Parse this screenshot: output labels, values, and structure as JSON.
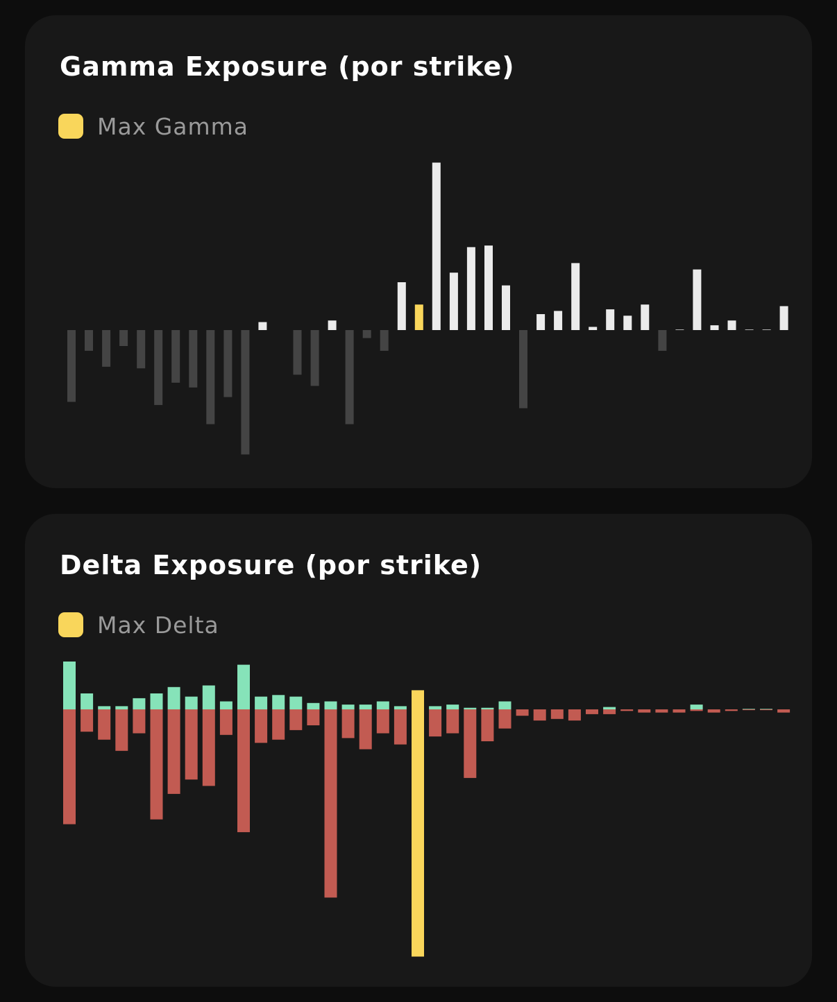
{
  "colors": {
    "background": "#0d0d0d",
    "card": "#181818",
    "highlight": "#f9d65b",
    "gamma_positive": "#ebebeb",
    "gamma_negative": "#444444",
    "delta_positive": "#86e3b9",
    "delta_negative": "#c25b52"
  },
  "charts": {
    "gamma": {
      "title": "Gamma Exposure (por strike)",
      "legend": "Max Gamma"
    },
    "delta": {
      "title": "Delta Exposure (por strike)",
      "legend": "Max Delta"
    }
  },
  "chart_data": [
    {
      "type": "bar",
      "title": "Gamma Exposure (por strike)",
      "legend": [
        "Max Gamma"
      ],
      "legend_placement": "top-left",
      "grid": false,
      "highlight_index": 20,
      "ylim": [
        -80,
        105
      ],
      "values": [
        -45,
        -13,
        -23,
        -10,
        -24,
        -47,
        -33,
        -36,
        -59,
        -42,
        -78,
        5,
        0,
        -28,
        -35,
        6,
        -59,
        -5,
        -13,
        30,
        16,
        105,
        36,
        52,
        53,
        28,
        -49,
        10,
        12,
        42,
        2,
        13,
        9,
        16,
        -13,
        0.3,
        38,
        3,
        6,
        0.3,
        0.3,
        15
      ]
    },
    {
      "type": "bar",
      "title": "Delta Exposure (por strike)",
      "legend": [
        "Max Delta"
      ],
      "legend_placement": "top-left",
      "grid": false,
      "highlight_index": 20,
      "highlight_value": -155,
      "ylim": [
        -160,
        35
      ],
      "series": [
        {
          "values": [
            30,
            10,
            2,
            2,
            7,
            10,
            14,
            8,
            15,
            5,
            28,
            8,
            9,
            8,
            4,
            5,
            3,
            3,
            5,
            2,
            12,
            2,
            3,
            1,
            1,
            5,
            0,
            0,
            0,
            0,
            0,
            1.5,
            0,
            0,
            0,
            0,
            3,
            0,
            0,
            0.3,
            0.3,
            0
          ]
        },
        {
          "values": [
            -72,
            -14,
            -19,
            -26,
            -15,
            -69,
            -53,
            -44,
            -48,
            -16,
            -77,
            -21,
            -19,
            -13,
            -10,
            -118,
            -18,
            -25,
            -15,
            -22,
            0,
            -17,
            -15,
            -43,
            -20,
            -12,
            -4,
            -7,
            -6,
            -7,
            -3,
            -3,
            -1,
            -2,
            -2,
            -2,
            -1,
            -2,
            -1,
            -0.5,
            -0.5,
            -2
          ]
        }
      ]
    }
  ]
}
